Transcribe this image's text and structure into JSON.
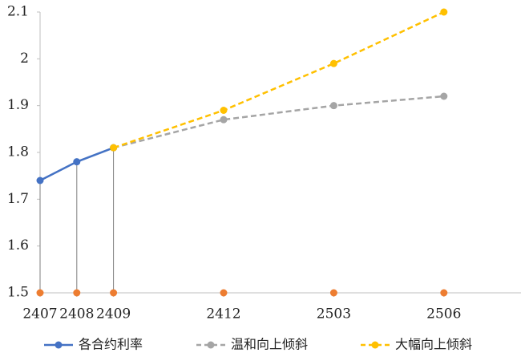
{
  "chart_data": {
    "type": "line",
    "x": [
      "2407",
      "2408",
      "2409",
      "2412",
      "2503",
      "2506"
    ],
    "series": [
      {
        "name": "各合约利率",
        "color": "#4472c4",
        "dashed": false,
        "values": [
          1.74,
          1.78,
          1.81,
          null,
          null,
          null
        ]
      },
      {
        "name": "温和向上倾斜",
        "color": "#a5a5a5",
        "dashed": true,
        "values": [
          null,
          null,
          1.81,
          1.87,
          1.9,
          1.92
        ]
      },
      {
        "name": "大幅向上倾斜",
        "color": "#ffc000",
        "dashed": true,
        "values": [
          null,
          null,
          1.81,
          1.89,
          1.99,
          2.1
        ]
      }
    ],
    "base_points": {
      "color": "#ed7d31",
      "values": [
        1.5,
        1.5,
        1.5,
        1.5,
        1.5,
        1.5
      ]
    },
    "ylim": [
      1.5,
      2.1
    ],
    "yticks": [
      1.5,
      1.6,
      1.7,
      1.8,
      1.9,
      2,
      2.1
    ],
    "grid": false,
    "legend": "bottom"
  }
}
